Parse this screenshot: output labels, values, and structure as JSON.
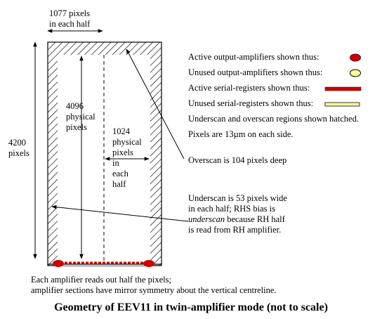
{
  "labels": {
    "top_width": [
      "1077 pixels",
      "in each half"
    ],
    "height_total": [
      "4200",
      "pixels"
    ],
    "height_physical": [
      "4096",
      "physical",
      "pixels"
    ],
    "half_width": [
      "1024",
      "physical",
      "pixels",
      "in",
      "each",
      "half"
    ]
  },
  "legend": [
    {
      "text": "Active output-amplifiers shown thus:",
      "symbol": "active-amp"
    },
    {
      "text": "Unused output-amplifiers shown thus:",
      "symbol": "unused-amp"
    },
    {
      "text": "Active serial-registers shown thus:",
      "symbol": "active-reg"
    },
    {
      "text": "Unused serial-registers shown thus:",
      "symbol": "unused-reg"
    },
    {
      "text": "Underscan and overscan regions shown hatched.",
      "symbol": ""
    },
    {
      "text": "Pixels are 13µm on each side.",
      "symbol": ""
    }
  ],
  "annotations": {
    "overscan": "Overscan is 104 pixels deep",
    "underscan_lines": [
      [
        {
          "t": "Underscan is 53 pixels wide",
          "i": false
        }
      ],
      [
        {
          "t": "in each half; RHS bias is",
          "i": false
        }
      ],
      [
        {
          "t": "underscan",
          "i": true
        },
        {
          "t": " because RH half",
          "i": false
        }
      ],
      [
        {
          "t": "is read from RH amplifier.",
          "i": false
        }
      ]
    ],
    "readout": [
      "Each amplifier reads out half the pixels;",
      "amplifier sections have mirror symmetry about the vertical centreline."
    ]
  },
  "caption": "Geometry of EEV11 in twin-amplifier mode (not to scale)",
  "colors": {
    "active": "#cc0000",
    "unused": "#ffff99",
    "hatch": "#000000"
  }
}
